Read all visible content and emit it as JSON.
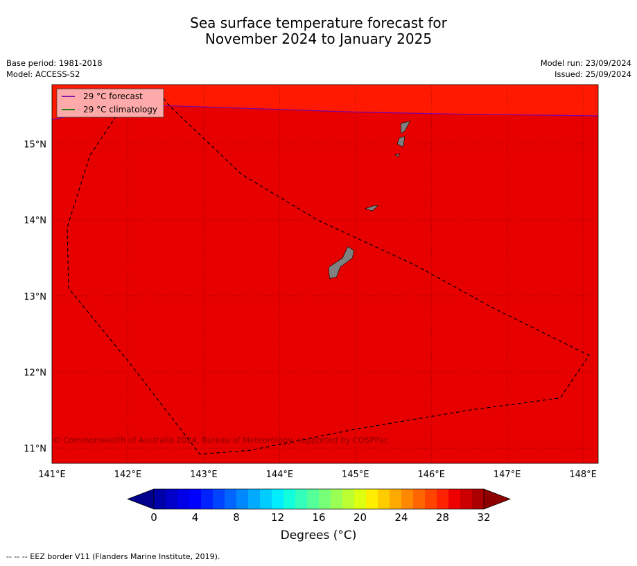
{
  "title": {
    "line1": "Sea surface temperature forecast for",
    "line2": "November 2024 to January 2025"
  },
  "meta_left": {
    "base_period": "Base period: 1981-2018",
    "model": "Model: ACCESS-S2"
  },
  "meta_right": {
    "model_run": "Model run: 23/09/2024",
    "issued": "Issued: 25/09/2024"
  },
  "map": {
    "lon_range": [
      141.0,
      148.2
    ],
    "lat_range": [
      10.8,
      15.78
    ],
    "lon_ticks": [
      141,
      142,
      143,
      144,
      145,
      146,
      147,
      148
    ],
    "lon_tick_labels": [
      "141°E",
      "142°E",
      "143°E",
      "144°E",
      "145°E",
      "146°E",
      "147°E",
      "148°E"
    ],
    "lat_ticks": [
      11,
      12,
      13,
      14,
      15
    ],
    "lat_tick_labels": [
      "11°N",
      "12°N",
      "13°N",
      "14°N",
      "15°N"
    ],
    "grid": true,
    "fill_colors": {
      "main": "#e60000",
      "north_band": "#ff1900",
      "land": "#808080"
    },
    "legend": {
      "placement": "top-left",
      "entries": [
        {
          "label": "29 °C  forecast",
          "color": "#7700aa"
        },
        {
          "label": "29 °C  climatology",
          "color": "#008000"
        }
      ]
    },
    "contour_29_forecast_lonlat": [
      [
        141.0,
        15.32
      ],
      [
        142.0,
        15.51
      ],
      [
        142.6,
        15.5
      ],
      [
        143.5,
        15.47
      ],
      [
        145.0,
        15.42
      ],
      [
        146.5,
        15.39
      ],
      [
        148.2,
        15.37
      ]
    ],
    "eez_border_lonlat": [
      [
        142.55,
        15.5
      ],
      [
        142.45,
        15.62
      ],
      [
        142.25,
        15.7
      ],
      [
        141.95,
        15.52
      ],
      [
        141.5,
        14.85
      ],
      [
        141.2,
        13.9
      ],
      [
        141.22,
        13.1
      ],
      [
        142.0,
        12.15
      ],
      [
        142.95,
        10.92
      ],
      [
        143.6,
        10.97
      ],
      [
        145.0,
        11.25
      ],
      [
        146.5,
        11.5
      ],
      [
        147.7,
        11.66
      ],
      [
        148.08,
        12.22
      ],
      [
        146.8,
        12.85
      ],
      [
        145.8,
        13.4
      ],
      [
        144.5,
        14.0
      ],
      [
        143.5,
        14.6
      ],
      [
        142.55,
        15.5
      ]
    ],
    "islands_lonlat": [
      [
        [
          145.6,
          15.27
        ],
        [
          145.72,
          15.3
        ],
        [
          145.65,
          15.17
        ],
        [
          145.6,
          15.14
        ]
      ],
      [
        [
          145.58,
          15.08
        ],
        [
          145.65,
          15.1
        ],
        [
          145.63,
          14.96
        ],
        [
          145.55,
          15.0
        ]
      ],
      [
        [
          145.52,
          14.86
        ],
        [
          145.58,
          14.87
        ],
        [
          145.56,
          14.83
        ]
      ],
      [
        [
          145.13,
          14.15
        ],
        [
          145.25,
          14.19
        ],
        [
          145.3,
          14.19
        ],
        [
          145.22,
          14.12
        ]
      ],
      [
        [
          144.65,
          13.38
        ],
        [
          144.83,
          13.5
        ],
        [
          144.9,
          13.65
        ],
        [
          144.98,
          13.6
        ],
        [
          144.96,
          13.5
        ],
        [
          144.8,
          13.38
        ],
        [
          144.75,
          13.25
        ],
        [
          144.66,
          13.23
        ],
        [
          144.65,
          13.32
        ]
      ]
    ],
    "copyright": "© Commonwealth of Australia 2024, Bureau of Meteorology, supported by COSPPac"
  },
  "colorbar": {
    "min": 0,
    "max": 32,
    "step": 1.333,
    "tick_values": [
      0,
      4,
      8,
      12,
      16,
      20,
      24,
      28,
      32
    ],
    "tick_labels": [
      "0",
      "4",
      "8",
      "12",
      "16",
      "20",
      "24",
      "28",
      "32"
    ],
    "extend": "both",
    "under_color": "#00008c",
    "over_color": "#8c0000",
    "colors": [
      "#0000a8",
      "#0000c8",
      "#0000e8",
      "#0000ff",
      "#0022ff",
      "#0044ff",
      "#0066ff",
      "#0088ff",
      "#00aaff",
      "#00ccff",
      "#00eeff",
      "#11ffdd",
      "#33ffbb",
      "#55ff99",
      "#77ff77",
      "#99ff55",
      "#bbff33",
      "#ddff11",
      "#ffee00",
      "#ffcc00",
      "#ffaa00",
      "#ff8800",
      "#ff6600",
      "#ff4400",
      "#ff2200",
      "#ee0000",
      "#cc0000",
      "#aa0000"
    ],
    "label": "Degrees (°C)"
  },
  "footnote": "--  --  -- EEZ border V11 (Flanders Marine Institute, 2019)."
}
